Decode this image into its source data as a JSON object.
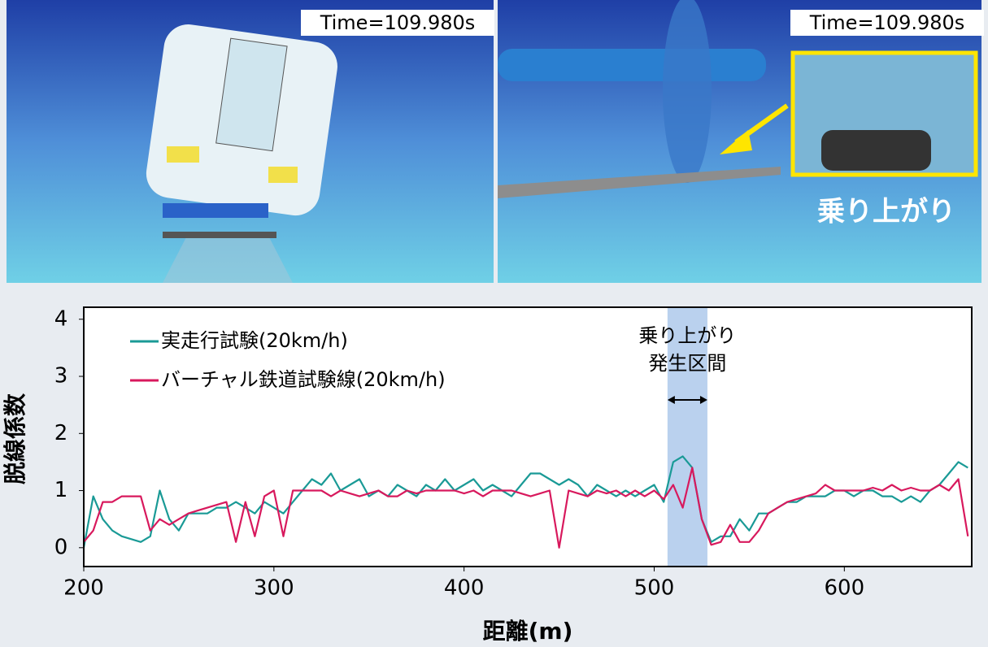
{
  "panels": [
    {
      "time": "Time=109.980s"
    },
    {
      "time": "Time=109.980s",
      "caption": "乗り上がり"
    }
  ],
  "chart_data": {
    "type": "line",
    "xlabel": "距離(m)",
    "ylabel": "脱線係数",
    "annotation": [
      "乗り上がり",
      "発生区間"
    ],
    "highlight": [
      507,
      528
    ],
    "highlight_color": "#a9c6ea",
    "xlim": [
      200,
      667
    ],
    "ylim": [
      -0.33,
      4.21
    ],
    "xticks": [
      200,
      300,
      400,
      500,
      600
    ],
    "yticks": [
      0,
      1,
      2,
      3,
      4
    ],
    "x": [
      200,
      205,
      210,
      215,
      220,
      225,
      230,
      235,
      240,
      245,
      250,
      255,
      260,
      265,
      270,
      275,
      280,
      285,
      290,
      295,
      300,
      305,
      310,
      315,
      320,
      325,
      330,
      335,
      340,
      345,
      350,
      355,
      360,
      365,
      370,
      375,
      380,
      385,
      390,
      395,
      400,
      405,
      410,
      415,
      420,
      425,
      430,
      435,
      440,
      445,
      450,
      455,
      460,
      465,
      470,
      475,
      480,
      485,
      490,
      495,
      500,
      505,
      510,
      515,
      520,
      525,
      530,
      535,
      540,
      545,
      550,
      555,
      560,
      565,
      570,
      575,
      580,
      585,
      590,
      595,
      600,
      605,
      610,
      615,
      620,
      625,
      630,
      635,
      640,
      645,
      650,
      655,
      660,
      665
    ],
    "series": [
      {
        "name": "実走行試験(20km/h)",
        "color": "#1a9a96",
        "values": [
          0.0,
          0.9,
          0.5,
          0.3,
          0.2,
          0.15,
          0.1,
          0.2,
          1.0,
          0.5,
          0.3,
          0.6,
          0.6,
          0.6,
          0.7,
          0.7,
          0.8,
          0.7,
          0.6,
          0.8,
          0.7,
          0.6,
          0.8,
          1.0,
          1.2,
          1.1,
          1.3,
          1.0,
          1.1,
          1.2,
          0.9,
          1.0,
          0.9,
          1.1,
          1.0,
          0.9,
          1.1,
          1.0,
          1.2,
          1.0,
          1.1,
          1.2,
          1.0,
          1.1,
          1.0,
          0.9,
          1.1,
          1.3,
          1.3,
          1.2,
          1.1,
          1.2,
          1.1,
          0.9,
          1.1,
          1.0,
          0.9,
          1.0,
          0.9,
          1.0,
          1.1,
          0.8,
          1.5,
          1.6,
          1.4,
          0.5,
          0.1,
          0.2,
          0.2,
          0.5,
          0.3,
          0.6,
          0.6,
          0.7,
          0.8,
          0.8,
          0.9,
          0.9,
          0.9,
          1.0,
          1.0,
          0.9,
          1.0,
          1.0,
          0.9,
          0.9,
          0.8,
          0.9,
          0.8,
          1.0,
          1.1,
          1.3,
          1.5,
          1.4
        ]
      },
      {
        "name": "バーチャル鉄道試験線(20km/h)",
        "color": "#d8195d",
        "values": [
          0.1,
          0.3,
          0.8,
          0.8,
          0.9,
          0.9,
          0.9,
          0.3,
          0.5,
          0.4,
          0.5,
          0.6,
          0.65,
          0.7,
          0.75,
          0.8,
          0.1,
          0.8,
          0.2,
          0.9,
          1.0,
          0.2,
          1.0,
          1.0,
          1.0,
          1.0,
          0.9,
          1.0,
          0.95,
          0.9,
          0.95,
          1.0,
          0.9,
          0.9,
          1.0,
          0.95,
          1.0,
          1.0,
          1.0,
          1.0,
          0.95,
          1.0,
          0.9,
          1.0,
          1.0,
          1.0,
          0.95,
          0.9,
          0.95,
          1.0,
          0.0,
          1.0,
          0.95,
          0.9,
          1.0,
          0.95,
          1.0,
          0.9,
          1.0,
          0.9,
          1.0,
          0.85,
          1.1,
          0.7,
          1.4,
          0.5,
          0.05,
          0.1,
          0.4,
          0.1,
          0.1,
          0.3,
          0.6,
          0.7,
          0.8,
          0.85,
          0.9,
          0.95,
          1.1,
          1.0,
          1.0,
          1.0,
          1.0,
          1.05,
          1.0,
          1.1,
          1.0,
          1.05,
          1.0,
          1.0,
          1.1,
          1.0,
          1.2,
          0.2
        ]
      }
    ]
  }
}
